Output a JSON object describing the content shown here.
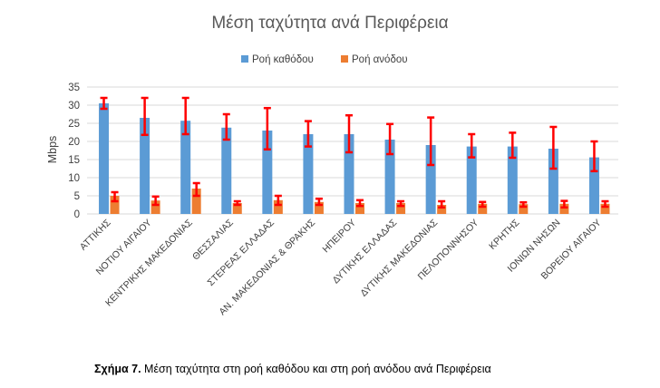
{
  "chart_data": {
    "type": "bar",
    "title": "Μέση ταχύτητα ανά Περιφέρεια",
    "ylabel": "Mbps",
    "xlabel": "",
    "ylim": [
      0,
      35
    ],
    "yticks": [
      0,
      5,
      10,
      15,
      20,
      25,
      30,
      35
    ],
    "grid": true,
    "legend_position": "top",
    "categories": [
      "ΑΤΤΙΚΗΣ",
      "ΝΟΤΙΟΥ ΑΙΓΑΙΟΥ",
      "ΚΕΝΤΡΙΚΗΣ ΜΑΚΕΔΟΝΙΑΣ",
      "ΘΕΣΣΑΛΙΑΣ",
      "ΣΤΕΡΕΑΣ ΕΛΛΑΔΑΣ",
      "ΑΝ. ΜΑΚΕΔΟΝΙΑΣ & ΘΡΑΚΗΣ",
      "ΗΠΕΙΡΟΥ",
      "ΔΥΤΙΚΗΣ ΕΛΛΑΔΑΣ",
      "ΔΥΤΙΚΗΣ ΜΑΚΕΔΟΝΙΑΣ",
      "ΠΕΛΟΠΟΝΝΗΣΟΥ",
      "ΚΡΗΤΗΣ",
      "ΙΟΝΙΩΝ ΝΗΣΩΝ",
      "ΒΟΡΕΙΟΥ ΑΙΓΑΙΟΥ"
    ],
    "series": [
      {
        "name": "Ροή καθόδου",
        "color": "#5B9BD5",
        "values": [
          30.5,
          26.5,
          25.7,
          23.8,
          23.0,
          22.0,
          22.0,
          20.5,
          19.0,
          18.6,
          18.6,
          18.0,
          15.6
        ],
        "error_low": [
          29.0,
          21.8,
          22.0,
          20.5,
          17.8,
          18.6,
          17.0,
          16.5,
          13.5,
          15.6,
          15.5,
          12.5,
          11.8
        ],
        "error_high": [
          32.0,
          32.0,
          32.0,
          27.5,
          29.2,
          25.6,
          27.2,
          24.8,
          26.6,
          22.0,
          22.4,
          24.0,
          20.0
        ]
      },
      {
        "name": "Ροή ανόδου",
        "color": "#ED7D31",
        "values": [
          5.0,
          3.7,
          7.0,
          3.0,
          3.8,
          3.3,
          3.0,
          3.0,
          2.5,
          2.8,
          2.7,
          2.8,
          2.8
        ],
        "error_low": [
          3.5,
          2.5,
          5.0,
          2.5,
          2.5,
          2.5,
          2.2,
          2.2,
          1.8,
          2.0,
          2.0,
          1.8,
          2.0
        ],
        "error_high": [
          6.0,
          4.8,
          8.5,
          3.5,
          5.0,
          4.2,
          3.8,
          3.5,
          3.5,
          3.3,
          3.2,
          3.6,
          3.5
        ]
      }
    ],
    "error_bar_color": "#FF0000"
  },
  "caption": {
    "label": "Σχήμα 7.",
    "text": " Μέση ταχύτητα στη ροή καθόδου και στη ροή ανόδου ανά Περιφέρεια"
  }
}
